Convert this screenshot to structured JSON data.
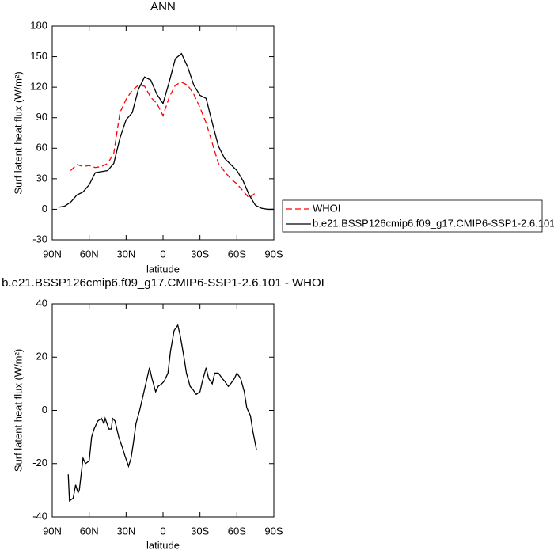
{
  "chart_data": [
    {
      "type": "line",
      "title": "ANN",
      "xlabel": "latitude",
      "ylabel": "Surf latent heat flux (W/m²)",
      "x": [
        90,
        85,
        80,
        75,
        70,
        65,
        60,
        55,
        50,
        45,
        40,
        35,
        30,
        25,
        20,
        15,
        10,
        5,
        0,
        -5,
        -10,
        -15,
        -20,
        -25,
        -30,
        -35,
        -40,
        -45,
        -50,
        -55,
        -60,
        -65,
        -70,
        -75,
        -80,
        -85,
        -90
      ],
      "series": [
        {
          "name": "WHOI",
          "color": "#ff0000",
          "line_style": "dashed",
          "values": [
            null,
            null,
            null,
            38,
            44,
            42,
            43,
            41,
            42,
            45,
            55,
            95,
            108,
            117,
            122,
            121,
            110,
            104,
            92,
            110,
            122,
            125,
            122,
            113,
            100,
            85,
            65,
            45,
            37,
            30,
            25,
            18,
            11,
            16,
            null,
            null,
            null
          ]
        },
        {
          "name": "b.e21.BSSP126cmip6.f09_g17.CMIP6-SSP1-2.6.101",
          "color": "#000000",
          "line_style": "solid",
          "values": [
            null,
            2,
            3,
            7,
            14,
            17,
            24,
            36,
            37,
            38,
            45,
            70,
            88,
            95,
            118,
            130,
            127,
            113,
            104,
            125,
            148,
            153,
            140,
            122,
            112,
            109,
            85,
            62,
            50,
            44,
            38,
            28,
            14,
            4,
            1,
            0,
            0
          ]
        }
      ],
      "xlim": [
        90,
        -90
      ],
      "xticks": [
        {
          "value": 90,
          "label": "90N"
        },
        {
          "value": 60,
          "label": "60N"
        },
        {
          "value": 30,
          "label": "30N"
        },
        0,
        {
          "value": -30,
          "label": "30S"
        },
        {
          "value": -60,
          "label": "60S"
        },
        {
          "value": -90,
          "label": "90S"
        }
      ],
      "ylim": [
        -30,
        180
      ],
      "yticks": [
        -30,
        0,
        30,
        60,
        90,
        120,
        150,
        180
      ],
      "legend": "outside-right"
    },
    {
      "type": "line",
      "title": "b.e21.BSSP126cmip6.f09_g17.CMIP6-SSP1-2.6.101 - WHOI",
      "xlabel": "latitude",
      "ylabel": "Surf latent heat flux (W/m²)",
      "x": [
        77,
        76,
        73,
        71,
        69,
        68,
        65,
        63,
        60,
        58,
        56,
        53,
        50,
        48,
        47,
        44,
        42,
        41,
        39,
        36,
        33,
        31,
        28,
        26,
        24,
        22,
        19,
        17,
        14,
        11,
        9,
        6,
        4,
        1,
        -1,
        -4,
        -6,
        -9,
        -12,
        -14,
        -17,
        -19,
        -22,
        -24,
        -27,
        -30,
        -32,
        -35,
        -37,
        -40,
        -42,
        -45,
        -48,
        -50,
        -53,
        -55,
        -58,
        -60,
        -63,
        -66,
        -68,
        -71,
        -73,
        -76
      ],
      "series": [
        {
          "color": "#000000",
          "line_style": "solid",
          "values": [
            -24,
            -34,
            -33,
            -28,
            -31,
            -30,
            -18,
            -20,
            -19,
            -10,
            -7,
            -4,
            -3,
            -5,
            -3,
            -7,
            -7,
            -3,
            -4,
            -10,
            -14,
            -17,
            -21,
            -18,
            -12,
            -5,
            0,
            4,
            10,
            16,
            12,
            7,
            9,
            10,
            11,
            14,
            22,
            30,
            32,
            28,
            20,
            14,
            9,
            8,
            6,
            7,
            11,
            16,
            12,
            10,
            14,
            14,
            12,
            11,
            9,
            10,
            12,
            14,
            12,
            7,
            1,
            -2,
            -8,
            -15
          ]
        }
      ],
      "xlim": [
        90,
        -90
      ],
      "xticks": [
        {
          "value": 90,
          "label": "90N"
        },
        {
          "value": 60,
          "label": "60N"
        },
        {
          "value": 30,
          "label": "30N"
        },
        0,
        {
          "value": -30,
          "label": "30S"
        },
        {
          "value": -60,
          "label": "60S"
        },
        {
          "value": -90,
          "label": "90S"
        }
      ],
      "ylim": [
        -40,
        40
      ],
      "yticks": [
        -40,
        -20,
        0,
        20,
        40
      ]
    }
  ]
}
